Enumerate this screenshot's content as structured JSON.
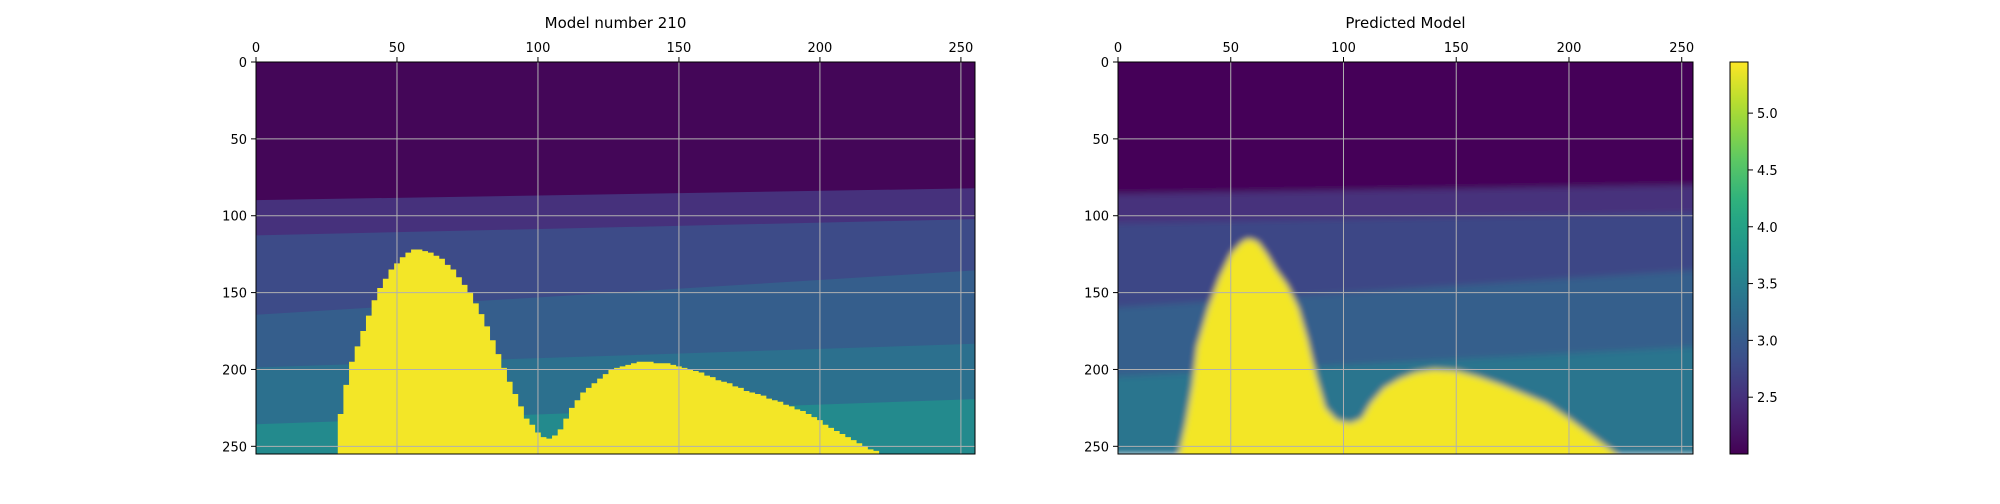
{
  "chart_data": [
    {
      "type": "heatmap",
      "title": "Model number 210",
      "x_ticks": [
        0,
        50,
        100,
        150,
        200,
        250
      ],
      "y_ticks": [
        0,
        50,
        100,
        150,
        200,
        250
      ],
      "xlim": [
        0,
        255
      ],
      "ylim": [
        255,
        0
      ],
      "x_axis_position": "top",
      "grid": true,
      "colormap": "viridis",
      "value_range": [
        2.0,
        5.45
      ],
      "layers": [
        {
          "name": "layer-1",
          "value": 2.05,
          "bottom_left": 90,
          "bottom_right": 82
        },
        {
          "name": "layer-2",
          "value": 2.5,
          "bottom_left": 113,
          "bottom_right": 102
        },
        {
          "name": "layer-3",
          "value": 2.8,
          "bottom_left": 165,
          "bottom_right": 135
        },
        {
          "name": "layer-4",
          "value": 3.05,
          "bottom_left": 199,
          "bottom_right": 183
        },
        {
          "name": "layer-5",
          "value": 3.3,
          "bottom_left": 236,
          "bottom_right": 219
        },
        {
          "name": "layer-6",
          "value": 3.65,
          "bottom_left": 255,
          "bottom_right": 255
        }
      ],
      "salt_body": {
        "value": 5.4,
        "top_profile": [
          [
            27,
            255
          ],
          [
            28,
            240
          ],
          [
            30,
            218
          ],
          [
            33,
            195
          ],
          [
            37,
            175
          ],
          [
            42,
            150
          ],
          [
            47,
            135
          ],
          [
            52,
            125
          ],
          [
            55,
            122
          ],
          [
            60,
            123
          ],
          [
            65,
            128
          ],
          [
            70,
            137
          ],
          [
            75,
            150
          ],
          [
            80,
            168
          ],
          [
            85,
            190
          ],
          [
            90,
            212
          ],
          [
            95,
            232
          ],
          [
            100,
            243
          ],
          [
            103,
            245
          ],
          [
            106,
            242
          ],
          [
            110,
            228
          ],
          [
            115,
            215
          ],
          [
            120,
            207
          ],
          [
            125,
            200
          ],
          [
            130,
            197
          ],
          [
            135,
            195
          ],
          [
            145,
            196
          ],
          [
            155,
            201
          ],
          [
            165,
            208
          ],
          [
            175,
            215
          ],
          [
            185,
            221
          ],
          [
            195,
            229
          ],
          [
            205,
            240
          ],
          [
            215,
            250
          ],
          [
            221,
            255
          ]
        ],
        "stepped": true
      }
    },
    {
      "type": "heatmap",
      "title": "Predicted Model",
      "x_ticks": [
        0,
        50,
        100,
        150,
        200,
        250
      ],
      "y_ticks": [
        0,
        50,
        100,
        150,
        200,
        250
      ],
      "xlim": [
        0,
        255
      ],
      "ylim": [
        255,
        0
      ],
      "x_axis_position": "top",
      "grid": true,
      "colormap": "viridis",
      "value_range": [
        2.0,
        5.45
      ],
      "layers": [
        {
          "name": "layer-1",
          "value": 2.05,
          "bottom_left": 86,
          "bottom_right": 80
        },
        {
          "name": "layer-2",
          "value": 2.5,
          "bottom_left": 105,
          "bottom_right": 98
        },
        {
          "name": "layer-3",
          "value": 2.75,
          "bottom_left": 160,
          "bottom_right": 135
        },
        {
          "name": "layer-4",
          "value": 3.05,
          "bottom_left": 205,
          "bottom_right": 185
        },
        {
          "name": "layer-5",
          "value": 3.35,
          "bottom_left": 255,
          "bottom_right": 255
        }
      ],
      "salt_body": {
        "value": 5.4,
        "top_profile": [
          [
            27,
            255
          ],
          [
            30,
            235
          ],
          [
            33,
            210
          ],
          [
            35,
            185
          ],
          [
            40,
            160
          ],
          [
            45,
            140
          ],
          [
            50,
            125
          ],
          [
            55,
            117
          ],
          [
            58,
            115
          ],
          [
            62,
            117
          ],
          [
            66,
            125
          ],
          [
            70,
            135
          ],
          [
            75,
            145
          ],
          [
            80,
            160
          ],
          [
            84,
            180
          ],
          [
            88,
            205
          ],
          [
            92,
            225
          ],
          [
            97,
            233
          ],
          [
            103,
            235
          ],
          [
            108,
            232
          ],
          [
            112,
            222
          ],
          [
            118,
            212
          ],
          [
            125,
            206
          ],
          [
            132,
            202
          ],
          [
            140,
            200
          ],
          [
            150,
            201
          ],
          [
            160,
            205
          ],
          [
            170,
            210
          ],
          [
            180,
            216
          ],
          [
            190,
            222
          ],
          [
            200,
            232
          ],
          [
            210,
            243
          ],
          [
            221,
            255
          ]
        ],
        "stepped": false
      }
    }
  ],
  "colorbar": {
    "ticks": [
      2.5,
      3.0,
      3.5,
      4.0,
      4.5,
      5.0
    ],
    "tick_labels": [
      "2.5",
      "3.0",
      "3.5",
      "4.0",
      "4.5",
      "5.0"
    ],
    "range": [
      2.0,
      5.45
    ],
    "colormap": "viridis"
  }
}
